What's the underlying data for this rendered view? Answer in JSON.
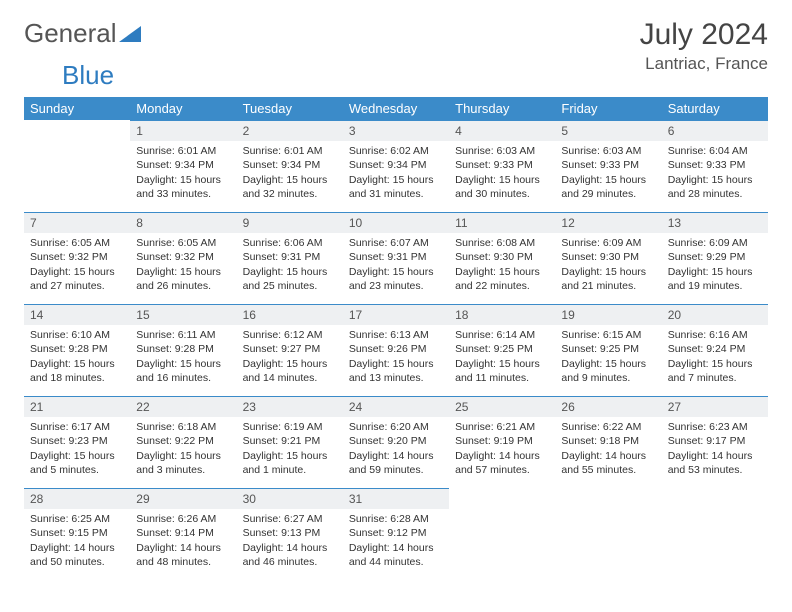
{
  "logo": {
    "text1": "General",
    "text2": "Blue"
  },
  "title": "July 2024",
  "location": "Lantriac, France",
  "colors": {
    "header_bg": "#3b8bc9",
    "daynum_bg": "#eef0f2",
    "border": "#3b8bc9"
  },
  "weekdays": [
    "Sunday",
    "Monday",
    "Tuesday",
    "Wednesday",
    "Thursday",
    "Friday",
    "Saturday"
  ],
  "start_offset": 1,
  "days": [
    {
      "n": 1,
      "sr": "6:01 AM",
      "ss": "9:34 PM",
      "dl": "15 hours and 33 minutes."
    },
    {
      "n": 2,
      "sr": "6:01 AM",
      "ss": "9:34 PM",
      "dl": "15 hours and 32 minutes."
    },
    {
      "n": 3,
      "sr": "6:02 AM",
      "ss": "9:34 PM",
      "dl": "15 hours and 31 minutes."
    },
    {
      "n": 4,
      "sr": "6:03 AM",
      "ss": "9:33 PM",
      "dl": "15 hours and 30 minutes."
    },
    {
      "n": 5,
      "sr": "6:03 AM",
      "ss": "9:33 PM",
      "dl": "15 hours and 29 minutes."
    },
    {
      "n": 6,
      "sr": "6:04 AM",
      "ss": "9:33 PM",
      "dl": "15 hours and 28 minutes."
    },
    {
      "n": 7,
      "sr": "6:05 AM",
      "ss": "9:32 PM",
      "dl": "15 hours and 27 minutes."
    },
    {
      "n": 8,
      "sr": "6:05 AM",
      "ss": "9:32 PM",
      "dl": "15 hours and 26 minutes."
    },
    {
      "n": 9,
      "sr": "6:06 AM",
      "ss": "9:31 PM",
      "dl": "15 hours and 25 minutes."
    },
    {
      "n": 10,
      "sr": "6:07 AM",
      "ss": "9:31 PM",
      "dl": "15 hours and 23 minutes."
    },
    {
      "n": 11,
      "sr": "6:08 AM",
      "ss": "9:30 PM",
      "dl": "15 hours and 22 minutes."
    },
    {
      "n": 12,
      "sr": "6:09 AM",
      "ss": "9:30 PM",
      "dl": "15 hours and 21 minutes."
    },
    {
      "n": 13,
      "sr": "6:09 AM",
      "ss": "9:29 PM",
      "dl": "15 hours and 19 minutes."
    },
    {
      "n": 14,
      "sr": "6:10 AM",
      "ss": "9:28 PM",
      "dl": "15 hours and 18 minutes."
    },
    {
      "n": 15,
      "sr": "6:11 AM",
      "ss": "9:28 PM",
      "dl": "15 hours and 16 minutes."
    },
    {
      "n": 16,
      "sr": "6:12 AM",
      "ss": "9:27 PM",
      "dl": "15 hours and 14 minutes."
    },
    {
      "n": 17,
      "sr": "6:13 AM",
      "ss": "9:26 PM",
      "dl": "15 hours and 13 minutes."
    },
    {
      "n": 18,
      "sr": "6:14 AM",
      "ss": "9:25 PM",
      "dl": "15 hours and 11 minutes."
    },
    {
      "n": 19,
      "sr": "6:15 AM",
      "ss": "9:25 PM",
      "dl": "15 hours and 9 minutes."
    },
    {
      "n": 20,
      "sr": "6:16 AM",
      "ss": "9:24 PM",
      "dl": "15 hours and 7 minutes."
    },
    {
      "n": 21,
      "sr": "6:17 AM",
      "ss": "9:23 PM",
      "dl": "15 hours and 5 minutes."
    },
    {
      "n": 22,
      "sr": "6:18 AM",
      "ss": "9:22 PM",
      "dl": "15 hours and 3 minutes."
    },
    {
      "n": 23,
      "sr": "6:19 AM",
      "ss": "9:21 PM",
      "dl": "15 hours and 1 minute."
    },
    {
      "n": 24,
      "sr": "6:20 AM",
      "ss": "9:20 PM",
      "dl": "14 hours and 59 minutes."
    },
    {
      "n": 25,
      "sr": "6:21 AM",
      "ss": "9:19 PM",
      "dl": "14 hours and 57 minutes."
    },
    {
      "n": 26,
      "sr": "6:22 AM",
      "ss": "9:18 PM",
      "dl": "14 hours and 55 minutes."
    },
    {
      "n": 27,
      "sr": "6:23 AM",
      "ss": "9:17 PM",
      "dl": "14 hours and 53 minutes."
    },
    {
      "n": 28,
      "sr": "6:25 AM",
      "ss": "9:15 PM",
      "dl": "14 hours and 50 minutes."
    },
    {
      "n": 29,
      "sr": "6:26 AM",
      "ss": "9:14 PM",
      "dl": "14 hours and 48 minutes."
    },
    {
      "n": 30,
      "sr": "6:27 AM",
      "ss": "9:13 PM",
      "dl": "14 hours and 46 minutes."
    },
    {
      "n": 31,
      "sr": "6:28 AM",
      "ss": "9:12 PM",
      "dl": "14 hours and 44 minutes."
    }
  ],
  "labels": {
    "sunrise": "Sunrise:",
    "sunset": "Sunset:",
    "daylight": "Daylight:"
  }
}
